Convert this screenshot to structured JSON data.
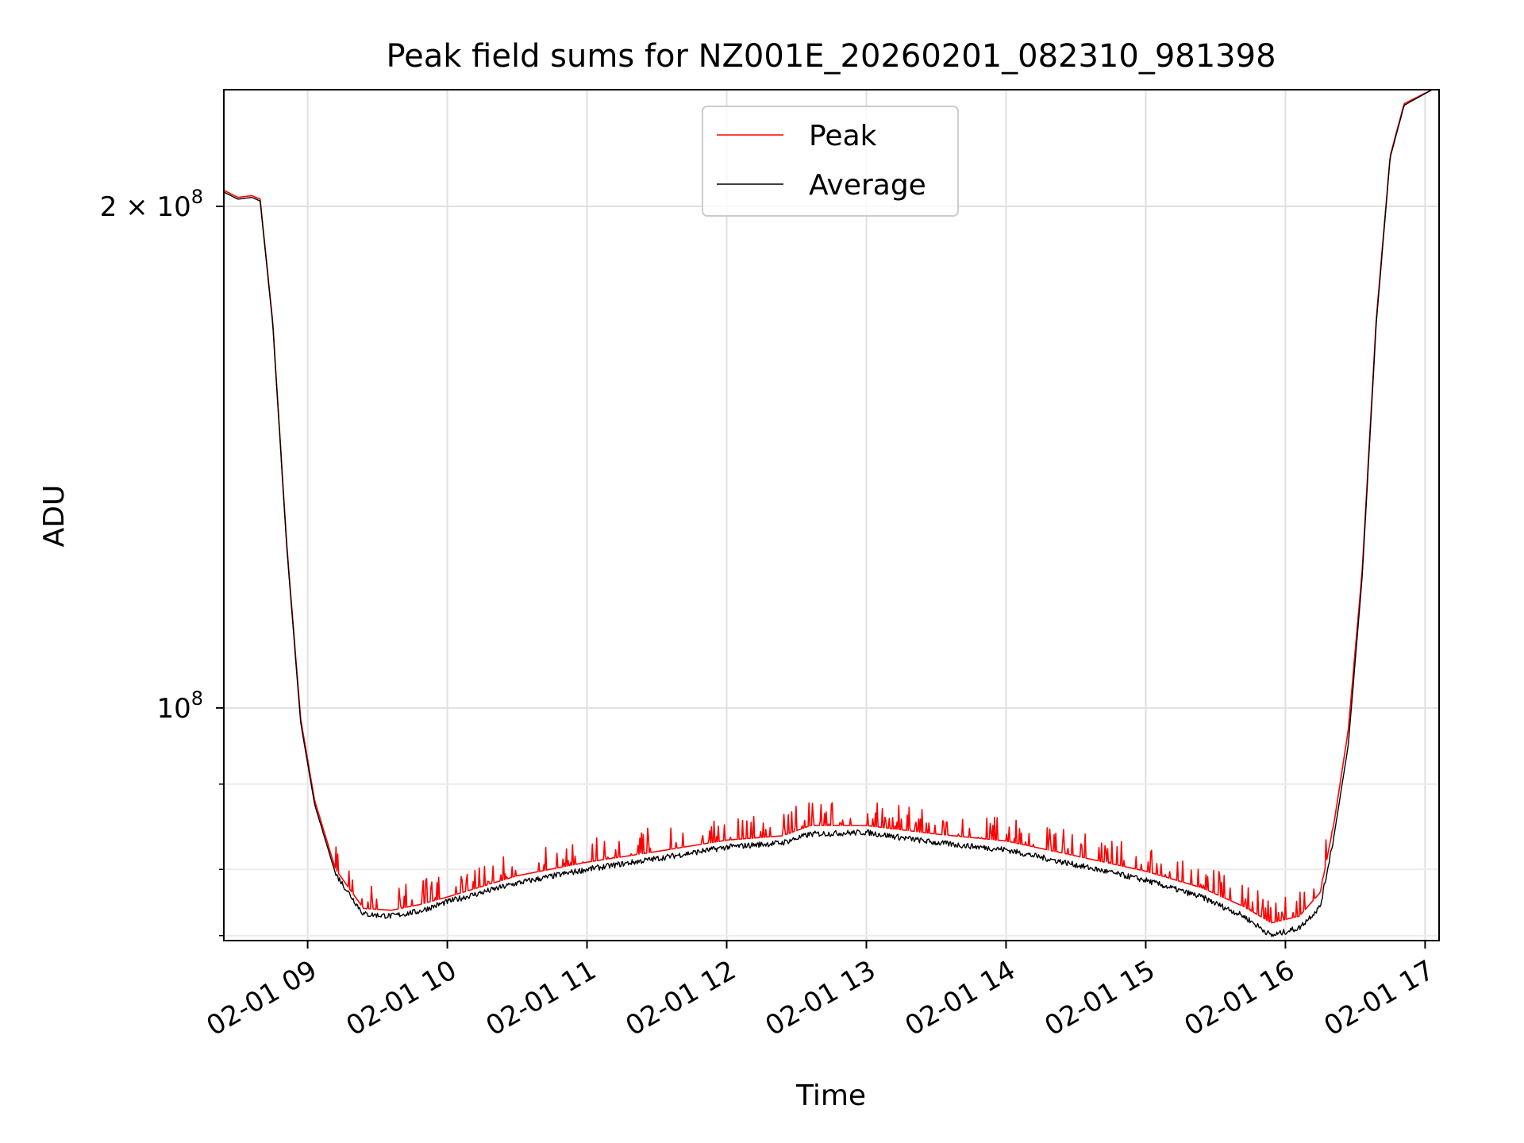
{
  "chart_data": {
    "type": "line",
    "title": "Peak field sums for NZ001E_20260201_082310_981398",
    "xlabel": "Time",
    "ylabel": "ADU",
    "yscale": "log",
    "grid": true,
    "legend_location": "upper center",
    "x_range_hours": [
      8.4,
      17.1
    ],
    "ylim": [
      72500000,
      235000000
    ],
    "x_ticks": [
      {
        "hour": 9,
        "label": "02-01 09"
      },
      {
        "hour": 10,
        "label": "02-01 10"
      },
      {
        "hour": 11,
        "label": "02-01 11"
      },
      {
        "hour": 12,
        "label": "02-01 12"
      },
      {
        "hour": 13,
        "label": "02-01 13"
      },
      {
        "hour": 14,
        "label": "02-01 14"
      },
      {
        "hour": 15,
        "label": "02-01 15"
      },
      {
        "hour": 16,
        "label": "02-01 16"
      },
      {
        "hour": 17,
        "label": "02-01 17"
      }
    ],
    "y_major_ticks": [
      {
        "value": 100000000,
        "base": "10",
        "exp": "8",
        "coef": ""
      },
      {
        "value": 200000000,
        "base": "10",
        "exp": "8",
        "coef": "2 × "
      }
    ],
    "y_minor_ticks": [
      73000000,
      80000000,
      90000000
    ],
    "series": [
      {
        "name": "Average",
        "color": "#000000",
        "points": [
          [
            8.4,
            204000000
          ],
          [
            8.5,
            202000000
          ],
          [
            8.6,
            202500000
          ],
          [
            8.66,
            201500000
          ],
          [
            8.75,
            170000000
          ],
          [
            8.85,
            125000000
          ],
          [
            8.95,
            98000000
          ],
          [
            9.05,
            87500000
          ],
          [
            9.2,
            79500000
          ],
          [
            9.4,
            75200000
          ],
          [
            9.6,
            75000000
          ],
          [
            9.8,
            75500000
          ],
          [
            10.0,
            76500000
          ],
          [
            10.5,
            78500000
          ],
          [
            11.0,
            80000000
          ],
          [
            11.5,
            81200000
          ],
          [
            12.0,
            82500000
          ],
          [
            12.4,
            83000000
          ],
          [
            12.6,
            84000000
          ],
          [
            13.0,
            84200000
          ],
          [
            13.5,
            83000000
          ],
          [
            14.0,
            82200000
          ],
          [
            14.5,
            80500000
          ],
          [
            15.0,
            78800000
          ],
          [
            15.4,
            77000000
          ],
          [
            15.7,
            75000000
          ],
          [
            15.9,
            73000000
          ],
          [
            16.1,
            73800000
          ],
          [
            16.25,
            76000000
          ],
          [
            16.35,
            84000000
          ],
          [
            16.45,
            95000000
          ],
          [
            16.55,
            120000000
          ],
          [
            16.65,
            170000000
          ],
          [
            16.75,
            214000000
          ],
          [
            16.85,
            230000000
          ],
          [
            17.05,
            235000000
          ]
        ]
      },
      {
        "name": "Peak",
        "color": "#ff0000",
        "points": [
          [
            8.4,
            204500000
          ],
          [
            8.5,
            202500000
          ],
          [
            8.6,
            203000000
          ],
          [
            8.66,
            202000000
          ],
          [
            8.75,
            170500000
          ],
          [
            8.85,
            125500000
          ],
          [
            8.95,
            98500000
          ],
          [
            9.05,
            88000000
          ],
          [
            9.2,
            80000000
          ],
          [
            9.4,
            75800000
          ],
          [
            9.6,
            75600000
          ],
          [
            9.8,
            76200000
          ],
          [
            10.0,
            77000000
          ],
          [
            10.5,
            79300000
          ],
          [
            11.0,
            80800000
          ],
          [
            11.5,
            82000000
          ],
          [
            12.0,
            83300000
          ],
          [
            12.4,
            83800000
          ],
          [
            12.6,
            85000000
          ],
          [
            13.0,
            85000000
          ],
          [
            13.5,
            84000000
          ],
          [
            14.0,
            83200000
          ],
          [
            14.5,
            81500000
          ],
          [
            15.0,
            79800000
          ],
          [
            15.4,
            78000000
          ],
          [
            15.7,
            76000000
          ],
          [
            15.9,
            74300000
          ],
          [
            16.1,
            75000000
          ],
          [
            16.25,
            77500000
          ],
          [
            16.35,
            85500000
          ],
          [
            16.45,
            97000000
          ],
          [
            16.55,
            121000000
          ],
          [
            16.65,
            171000000
          ],
          [
            16.75,
            214500000
          ],
          [
            16.85,
            230500000
          ],
          [
            17.05,
            235000000
          ]
        ]
      }
    ]
  }
}
